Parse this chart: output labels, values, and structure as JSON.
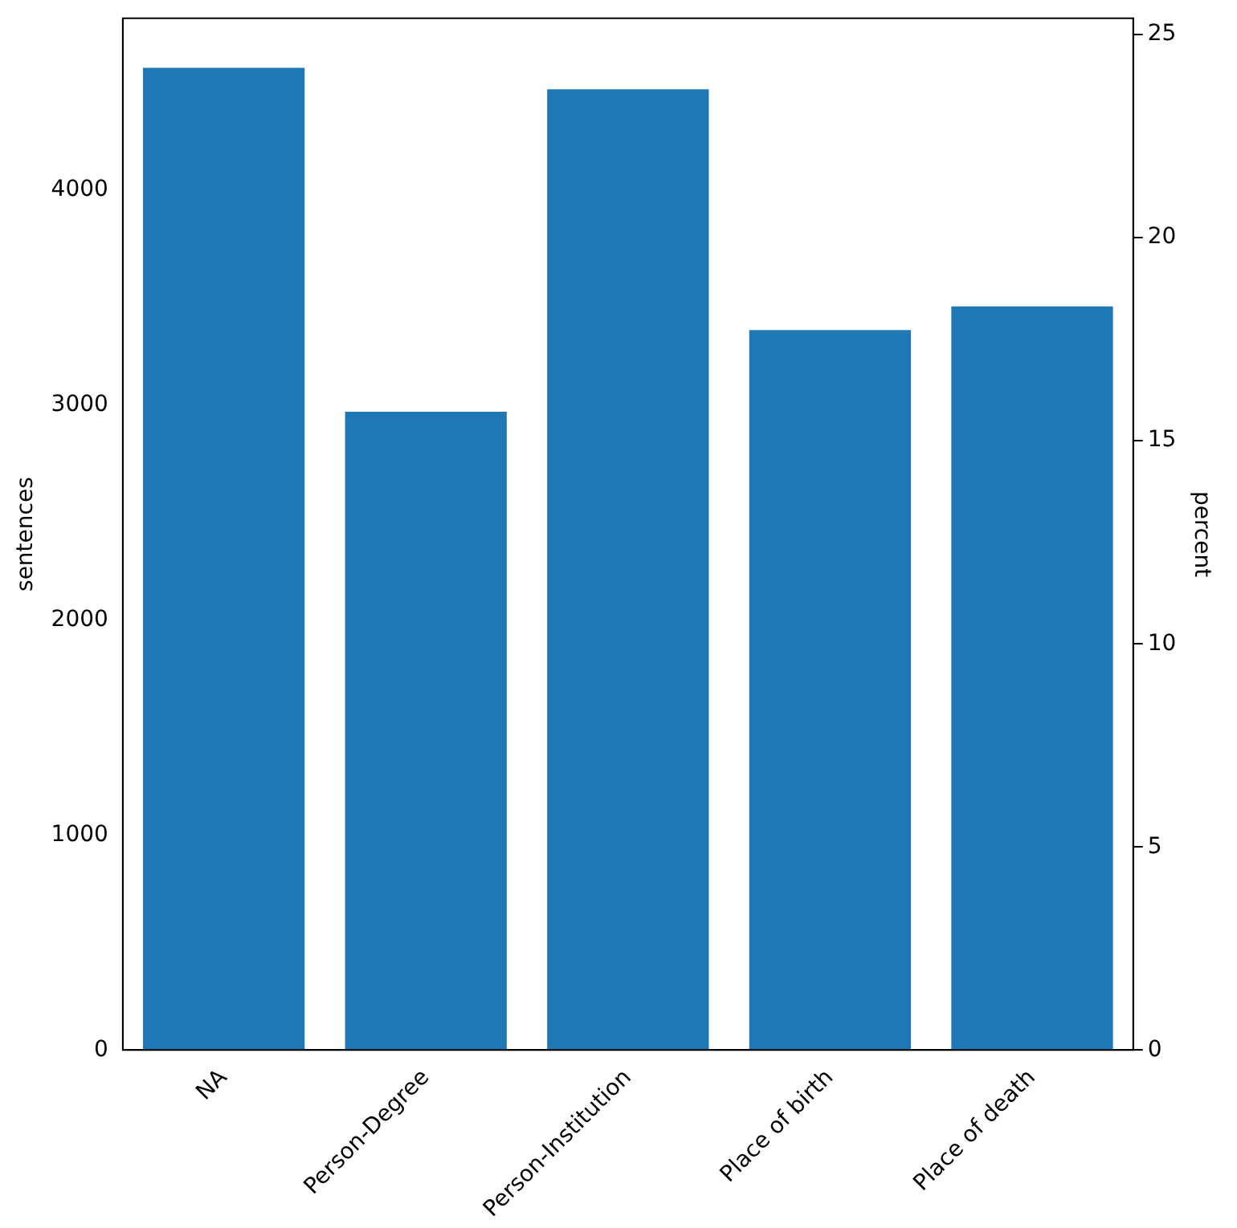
{
  "chart_data": {
    "type": "bar",
    "categories": [
      "NA",
      "Person-Degree",
      "Person-Institution",
      "Place of birth",
      "Place of death"
    ],
    "values": [
      4570,
      2970,
      4470,
      3350,
      3460
    ],
    "color": "#1f77b4",
    "ylabel": "sentences",
    "y2label": "percent",
    "ylim": [
      0,
      4800
    ],
    "yticks": [
      0,
      1000,
      2000,
      3000,
      4000
    ],
    "y2lim": [
      0,
      25.4
    ],
    "y2ticks": [
      0,
      5,
      10,
      15,
      20,
      25
    ],
    "grid": false,
    "legend": false
  }
}
